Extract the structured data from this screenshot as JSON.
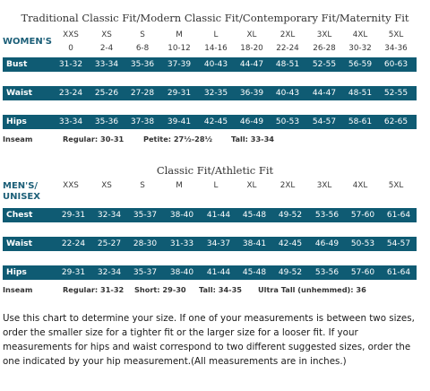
{
  "womens": {
    "title": "Traditional Classic Fit/Modern Classic Fit/Contemporary Fit/Maternity Fit",
    "label": "WOMEN'S",
    "sizes": [
      "XXS",
      "XS",
      "S",
      "M",
      "L",
      "XL",
      "2XL",
      "3XL",
      "4XL",
      "5XL"
    ],
    "numeric_sizes": [
      "0",
      "2-4",
      "6-8",
      "10-12",
      "14-16",
      "18-20",
      "22-24",
      "26-28",
      "30-32",
      "34-36"
    ],
    "rows": [
      {
        "label": "Bust",
        "values": [
          "31-32",
          "33-34",
          "35-36",
          "37-39",
          "40-43",
          "44-47",
          "48-51",
          "52-55",
          "56-59",
          "60-63"
        ]
      },
      {
        "label": "Waist",
        "values": [
          "23-24",
          "25-26",
          "27-28",
          "29-31",
          "32-35",
          "36-39",
          "40-43",
          "44-47",
          "48-51",
          "52-55"
        ]
      },
      {
        "label": "Hips",
        "values": [
          "33-34",
          "35-36",
          "37-38",
          "39-41",
          "42-45",
          "46-49",
          "50-53",
          "54-57",
          "58-61",
          "62-65"
        ]
      }
    ],
    "inseam": {
      "label": "Inseam",
      "items": [
        "Regular: 30-31",
        "Petite: 27½-28½",
        "Tall: 33-34"
      ]
    }
  },
  "mens": {
    "title": "Classic Fit/Athletic Fit",
    "label_line1": "MEN'S/",
    "label_line2": "UNISEX",
    "sizes": [
      "XXS",
      "XS",
      "S",
      "M",
      "L",
      "XL",
      "2XL",
      "3XL",
      "4XL",
      "5XL"
    ],
    "rows": [
      {
        "label": "Chest",
        "values": [
          "29-31",
          "32-34",
          "35-37",
          "38-40",
          "41-44",
          "45-48",
          "49-52",
          "53-56",
          "57-60",
          "61-64"
        ]
      },
      {
        "label": "Waist",
        "values": [
          "22-24",
          "25-27",
          "28-30",
          "31-33",
          "34-37",
          "38-41",
          "42-45",
          "46-49",
          "50-53",
          "54-57"
        ]
      },
      {
        "label": "Hips",
        "values": [
          "29-31",
          "32-34",
          "35-37",
          "38-40",
          "41-44",
          "45-48",
          "49-52",
          "53-56",
          "57-60",
          "61-64"
        ]
      }
    ],
    "inseam": {
      "label": "Inseam",
      "items": [
        "Regular: 31-32",
        "Short: 29-30",
        "Tall: 34-35",
        "Ultra Tall (unhemmed): 36"
      ]
    }
  },
  "note": "Use this chart to determine your size. If one of your measurements is between two sizes, order the smaller size for a tighter fit or the larger size for a looser fit. If your measurements for hips and waist correspond to two different suggested sizes, order the one indicated by your hip measurement.(All measurements are in inches.)",
  "colors": {
    "band": "#0f5b73",
    "label": "#1c5f78"
  }
}
